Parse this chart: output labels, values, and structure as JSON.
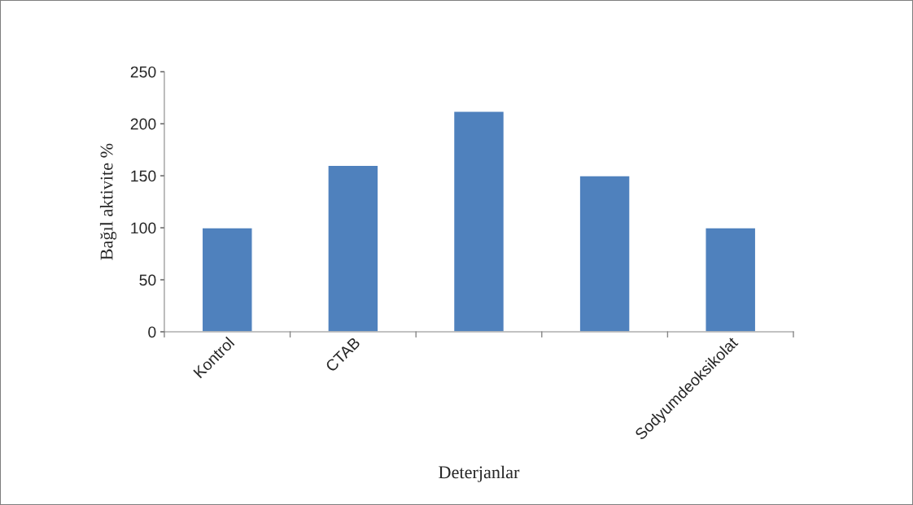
{
  "chart_data": {
    "type": "bar",
    "xlabel": "Deterjanlar",
    "ylabel": "Bağıl aktivite %",
    "categories": [
      "Kontrol",
      "CTAB",
      null,
      null,
      "Sodyumdeoksikolat"
    ],
    "values": [
      100,
      160,
      212,
      150,
      100
    ],
    "color": "#4f81bd",
    "ylim": [
      0,
      250
    ],
    "yticks": [
      0,
      50,
      100,
      150,
      200,
      250
    ],
    "grid": false,
    "legend": false
  }
}
